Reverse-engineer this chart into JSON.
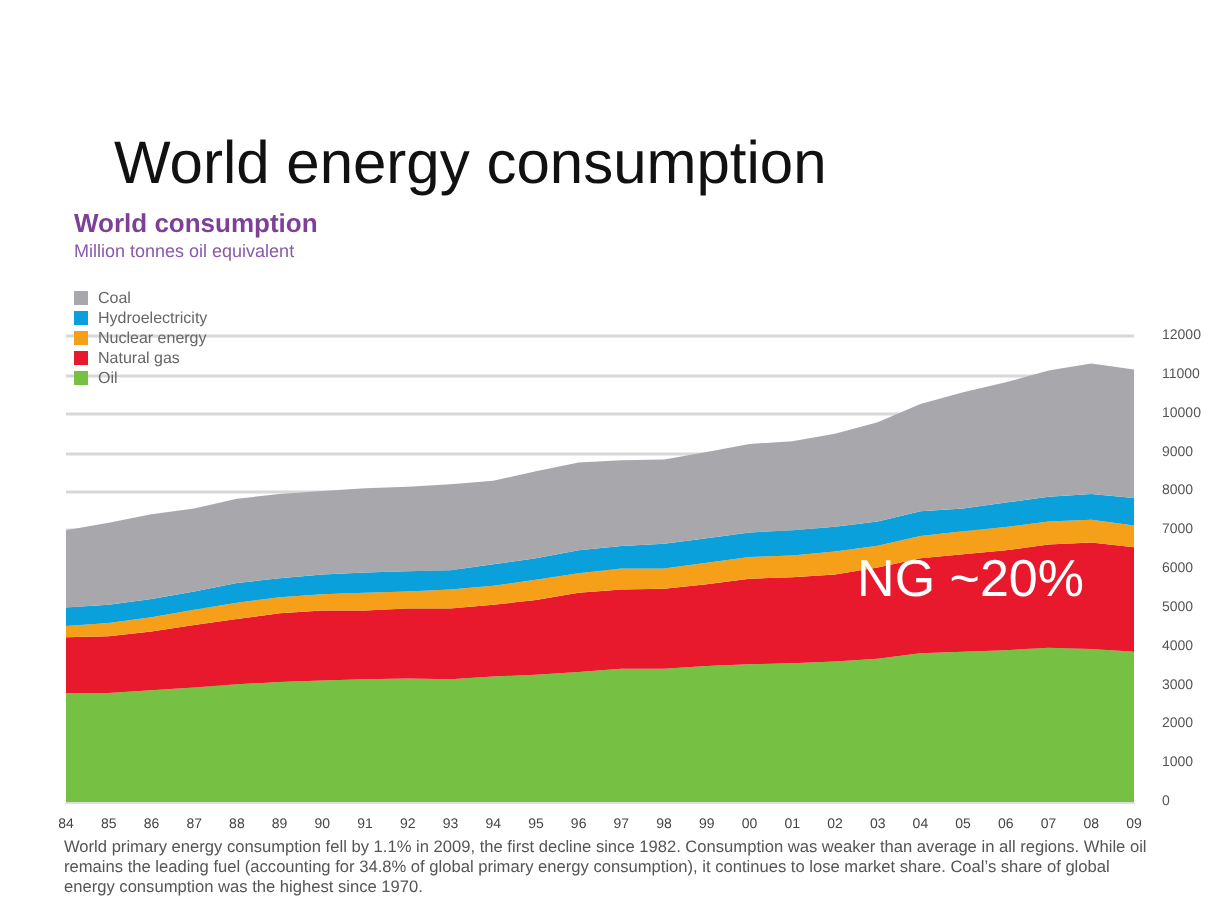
{
  "chart_data": {
    "type": "area",
    "stacked": true,
    "title": "World energy consumption",
    "subtitle": "World consumption",
    "ylabel": "Million tonnes oil equivalent",
    "categories": [
      "84",
      "85",
      "86",
      "87",
      "88",
      "89",
      "90",
      "91",
      "92",
      "93",
      "94",
      "95",
      "96",
      "97",
      "98",
      "99",
      "00",
      "01",
      "02",
      "03",
      "04",
      "05",
      "06",
      "07",
      "08",
      "09"
    ],
    "series": [
      {
        "name": "Oil",
        "color": "#76c043",
        "values": [
          2810,
          2810,
          2880,
          2950,
          3030,
          3090,
          3130,
          3160,
          3180,
          3160,
          3230,
          3280,
          3350,
          3430,
          3430,
          3500,
          3550,
          3570,
          3620,
          3690,
          3830,
          3870,
          3910,
          3970,
          3940,
          3870
        ]
      },
      {
        "name": "Natural gas",
        "color": "#e8192c",
        "values": [
          1430,
          1460,
          1510,
          1610,
          1680,
          1770,
          1800,
          1770,
          1800,
          1820,
          1850,
          1920,
          2040,
          2040,
          2060,
          2110,
          2200,
          2220,
          2240,
          2350,
          2450,
          2510,
          2570,
          2660,
          2740,
          2690
        ]
      },
      {
        "name": "Nuclear energy",
        "color": "#f6a01a",
        "values": [
          290,
          340,
          370,
          390,
          420,
          410,
          420,
          460,
          440,
          490,
          490,
          520,
          500,
          540,
          520,
          550,
          560,
          560,
          590,
          560,
          570,
          590,
          600,
          590,
          590,
          560
        ]
      },
      {
        "name": "Hydroelectricity",
        "color": "#0aa0dc",
        "values": [
          480,
          470,
          470,
          470,
          510,
          490,
          510,
          520,
          520,
          500,
          550,
          560,
          590,
          580,
          640,
          630,
          630,
          650,
          640,
          620,
          640,
          590,
          630,
          640,
          660,
          710
        ]
      },
      {
        "name": "Coal",
        "color": "#a8a8ac",
        "values": [
          1990,
          2110,
          2180,
          2140,
          2170,
          2170,
          2150,
          2170,
          2180,
          2210,
          2150,
          2240,
          2260,
          2210,
          2170,
          2220,
          2280,
          2290,
          2390,
          2560,
          2760,
          2990,
          3100,
          3250,
          3360,
          3310
        ]
      }
    ],
    "ylim": [
      0,
      12000
    ],
    "yticks": [
      0,
      1000,
      2000,
      3000,
      4000,
      5000,
      6000,
      7000,
      8000,
      9000,
      10000,
      11000,
      12000
    ],
    "grid": "y",
    "legend": "top left",
    "marker": "none",
    "annotations": [
      "NG ~20%",
      "World primary energy consumption fell by 1.1% in 2009, the first decline since 1982. Consumption was weaker than average in all regions. While oil remains the leading fuel (accounting for 34.8% of global primary energy consumption), it continues to lose market share. Coal’s share of global energy consumption was the highest since 1970."
    ]
  }
}
